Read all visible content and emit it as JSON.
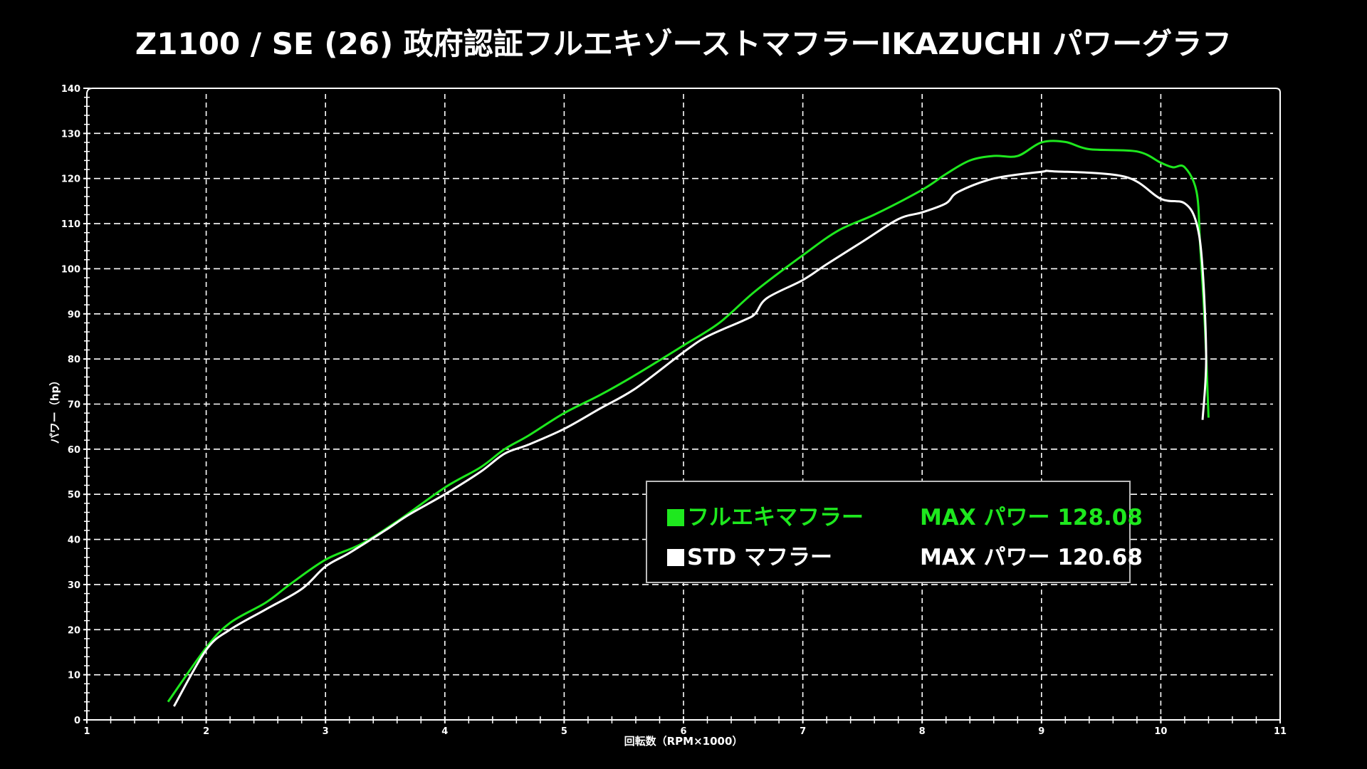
{
  "title": "Z1100 / SE (26) 政府認証フルエキゾーストマフラーIKAZUCHI  パワーグラフ",
  "colors": {
    "background": "#000000",
    "full_exhaust": "#1ee81e",
    "std": "#ffffff",
    "grid": "#ffffff"
  },
  "legend": [
    {
      "label": "フルエキマフラー",
      "max": "MAX パワー 128.08",
      "color": "#1ee81e"
    },
    {
      "label": "STD マフラー",
      "max": "MAX パワー 120.68",
      "color": "#ffffff"
    }
  ],
  "chart_data": {
    "type": "line",
    "title": "Z1100 / SE (26) 政府認証フルエキゾーストマフラーIKAZUCHI  パワーグラフ",
    "xlabel": "回転数（RPM×1000）",
    "ylabel": "パワー（hp）",
    "xlim": [
      1,
      11
    ],
    "ylim": [
      0,
      140
    ],
    "xticks": [
      "1",
      "2",
      "3",
      "4",
      "5",
      "6",
      "7",
      "8",
      "9",
      "10",
      "11"
    ],
    "yticks": [
      "0",
      "10",
      "20",
      "30",
      "40",
      "50",
      "60",
      "70",
      "80",
      "90",
      "100",
      "110",
      "120",
      "130",
      "140"
    ],
    "grid": true,
    "legend_placement": "bottom-right",
    "series": [
      {
        "name": "フルエキマフラー",
        "color": "#1ee81e",
        "x": [
          1.68,
          2.0,
          2.2,
          2.5,
          2.7,
          3.0,
          3.3,
          3.6,
          4.0,
          4.3,
          4.5,
          4.7,
          5.0,
          5.3,
          5.6,
          6.0,
          6.3,
          6.6,
          7.0,
          7.3,
          7.6,
          8.0,
          8.2,
          8.4,
          8.6,
          8.8,
          9.0,
          9.2,
          9.4,
          9.8,
          10.0,
          10.1,
          10.2,
          10.3,
          10.33,
          10.37,
          10.4
        ],
        "y": [
          4,
          16,
          21.5,
          26,
          30,
          35.5,
          39,
          44,
          51.5,
          56,
          60,
          63,
          68,
          72,
          76.5,
          83,
          88,
          95,
          103,
          108.5,
          112,
          117.5,
          121,
          124,
          125,
          125,
          128,
          128.1,
          126.5,
          126,
          123.5,
          122.5,
          122.5,
          117,
          105,
          87,
          67
        ]
      },
      {
        "name": "STD マフラー",
        "color": "#ffffff",
        "x": [
          1.73,
          2.0,
          2.2,
          2.5,
          2.8,
          3.0,
          3.2,
          3.5,
          3.7,
          4.0,
          4.3,
          4.5,
          4.7,
          5.0,
          5.3,
          5.6,
          6.0,
          6.2,
          6.5,
          6.6,
          6.7,
          7.0,
          7.2,
          7.5,
          7.8,
          8.0,
          8.2,
          8.3,
          8.6,
          9.0,
          9.1,
          9.7,
          10.0,
          10.2,
          10.3,
          10.35,
          10.38,
          10.35
        ],
        "y": [
          3,
          15.5,
          20,
          24.5,
          29,
          34,
          37,
          42,
          45.5,
          50,
          55,
          59,
          61,
          64.5,
          69,
          73.5,
          81.5,
          85,
          88.5,
          90,
          93.5,
          97.5,
          101,
          106,
          111,
          112.5,
          114.5,
          117,
          120,
          121.5,
          121.6,
          120.4,
          115.5,
          114.5,
          110,
          100,
          80,
          66.5
        ]
      }
    ]
  }
}
